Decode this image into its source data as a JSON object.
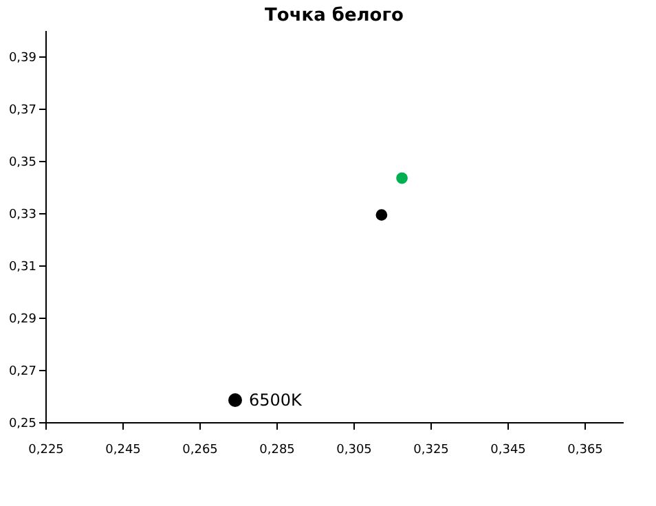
{
  "chart_data": {
    "type": "scatter",
    "title": "Точка белого",
    "xlim": [
      0.225,
      0.375
    ],
    "ylim": [
      0.25,
      0.4
    ],
    "xticks": [
      {
        "value": 0.225,
        "label": "0,225"
      },
      {
        "value": 0.245,
        "label": "0,245"
      },
      {
        "value": 0.265,
        "label": "0,265"
      },
      {
        "value": 0.285,
        "label": "0,285"
      },
      {
        "value": 0.305,
        "label": "0,305"
      },
      {
        "value": 0.325,
        "label": "0,325"
      },
      {
        "value": 0.345,
        "label": "0,345"
      },
      {
        "value": 0.365,
        "label": "0,365"
      }
    ],
    "yticks": [
      {
        "value": 0.25,
        "label": "0,25"
      },
      {
        "value": 0.27,
        "label": "0,27"
      },
      {
        "value": 0.29,
        "label": "0,29"
      },
      {
        "value": 0.31,
        "label": "0,31"
      },
      {
        "value": 0.33,
        "label": "0,33"
      },
      {
        "value": 0.35,
        "label": "0,35"
      },
      {
        "value": 0.37,
        "label": "0,37"
      },
      {
        "value": 0.39,
        "label": "0,39"
      }
    ],
    "series": [
      {
        "name": "6500K",
        "color": "#000000",
        "x": [
          0.3123
        ],
        "values": [
          0.3293
        ]
      },
      {
        "color": "#00b050",
        "x": [
          0.3176
        ],
        "values": [
          0.3434
        ]
      }
    ],
    "marker": "circle",
    "grid": false,
    "legend": "bottom"
  }
}
